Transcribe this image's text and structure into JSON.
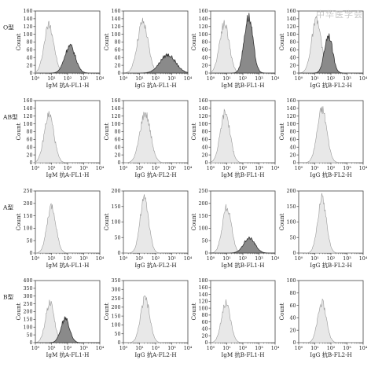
{
  "watermark": "中华医学会",
  "rows": [
    "O型",
    "AB型",
    "A型",
    "B型"
  ],
  "x_tick_labels": [
    "10⁰",
    "10¹",
    "10²",
    "10³",
    "10⁴"
  ],
  "colors": {
    "control_fill": "#e8e8e8",
    "sample_fill": "#8a8a8a",
    "line": "#444444"
  },
  "chart_data": [
    {
      "type": "area",
      "row": 0,
      "col": 0,
      "xlabel": "IgM 抗A-FL1-H",
      "ylabel": "Count",
      "xscale": "log",
      "xlim": [
        1,
        10000
      ],
      "ylim": [
        0,
        160
      ],
      "yticks": [
        0,
        20,
        40,
        60,
        80,
        100,
        120,
        140,
        160
      ],
      "series": [
        {
          "role": "control",
          "mu": 0.85,
          "sigma": 0.3,
          "peak": 126
        },
        {
          "role": "sample",
          "mu": 2.15,
          "sigma": 0.33,
          "peak": 70
        }
      ]
    },
    {
      "type": "area",
      "row": 0,
      "col": 1,
      "xlabel": "IgG 抗A-FL1-H",
      "ylabel": "Count",
      "xscale": "log",
      "xlim": [
        1,
        10000
      ],
      "ylim": [
        0,
        160
      ],
      "yticks": [
        0,
        20,
        40,
        60,
        80,
        100,
        120,
        140,
        160
      ],
      "series": [
        {
          "role": "control",
          "mu": 1.2,
          "sigma": 0.33,
          "peak": 131
        },
        {
          "role": "sample",
          "mu": 2.75,
          "sigma": 0.48,
          "peak": 47
        }
      ]
    },
    {
      "type": "area",
      "row": 0,
      "col": 2,
      "xlabel": "IgM 抗B-FL1-H",
      "ylabel": "Count",
      "xscale": "log",
      "xlim": [
        1,
        10000
      ],
      "ylim": [
        0,
        160
      ],
      "yticks": [
        0,
        20,
        40,
        60,
        80,
        100,
        120,
        140,
        160
      ],
      "series": [
        {
          "role": "control",
          "mu": 0.85,
          "sigma": 0.3,
          "peak": 128
        },
        {
          "role": "sample",
          "mu": 2.35,
          "sigma": 0.27,
          "peak": 145
        }
      ]
    },
    {
      "type": "area",
      "row": 0,
      "col": 3,
      "xlabel": "IgG 抗B-FL2-H",
      "ylabel": "Count",
      "xscale": "log",
      "xlim": [
        1,
        10000
      ],
      "ylim": [
        0,
        160
      ],
      "yticks": [
        0,
        20,
        40,
        60,
        80,
        100,
        120,
        140,
        160
      ],
      "series": [
        {
          "role": "control",
          "mu": 1.1,
          "sigma": 0.3,
          "peak": 135
        },
        {
          "role": "sample",
          "mu": 1.85,
          "sigma": 0.25,
          "peak": 98
        }
      ]
    },
    {
      "type": "area",
      "row": 1,
      "col": 0,
      "xlabel": "IgM 抗A-FL1-H",
      "ylabel": "Count",
      "xscale": "log",
      "xlim": [
        1,
        10000
      ],
      "ylim": [
        0,
        160
      ],
      "yticks": [
        0,
        20,
        40,
        60,
        80,
        100,
        120,
        140,
        160
      ],
      "series": [
        {
          "role": "control",
          "mu": 0.85,
          "sigma": 0.3,
          "peak": 124
        }
      ]
    },
    {
      "type": "area",
      "row": 1,
      "col": 1,
      "xlabel": "IgG 抗A-FL2-H",
      "ylabel": "Count",
      "xscale": "log",
      "xlim": [
        1,
        10000
      ],
      "ylim": [
        0,
        160
      ],
      "yticks": [
        0,
        20,
        40,
        60,
        80,
        100,
        120,
        140,
        160
      ],
      "series": [
        {
          "role": "control",
          "mu": 1.35,
          "sigma": 0.33,
          "peak": 128
        }
      ]
    },
    {
      "type": "area",
      "row": 1,
      "col": 2,
      "xlabel": "IgM 抗B-FL1-H",
      "ylabel": "Count",
      "xscale": "log",
      "xlim": [
        1,
        10000
      ],
      "ylim": [
        0,
        160
      ],
      "yticks": [
        0,
        20,
        40,
        60,
        80,
        100,
        120,
        140,
        160
      ],
      "series": [
        {
          "role": "control",
          "mu": 0.9,
          "sigma": 0.3,
          "peak": 130
        }
      ]
    },
    {
      "type": "area",
      "row": 1,
      "col": 3,
      "xlabel": "IgG 抗B-FL2-H",
      "ylabel": "Count",
      "xscale": "log",
      "xlim": [
        1,
        10000
      ],
      "ylim": [
        0,
        160
      ],
      "yticks": [
        0,
        20,
        40,
        60,
        80,
        100,
        120,
        140,
        160
      ],
      "series": [
        {
          "role": "control",
          "mu": 1.45,
          "sigma": 0.3,
          "peak": 137
        }
      ]
    },
    {
      "type": "area",
      "row": 2,
      "col": 0,
      "xlabel": "IgM 抗A-FL1-H",
      "ylabel": "Count",
      "xscale": "log",
      "xlim": [
        1,
        10000
      ],
      "ylim": [
        0,
        250
      ],
      "yticks": [
        0,
        50,
        100,
        150,
        200,
        250
      ],
      "series": [
        {
          "role": "control",
          "mu": 1.0,
          "sigma": 0.28,
          "peak": 185
        }
      ]
    },
    {
      "type": "area",
      "row": 2,
      "col": 1,
      "xlabel": "IgG 抗A-FL2-H",
      "ylabel": "Count",
      "xscale": "log",
      "xlim": [
        1,
        10000
      ],
      "ylim": [
        0,
        200
      ],
      "yticks": [
        0,
        50,
        100,
        150,
        200
      ],
      "series": [
        {
          "role": "control",
          "mu": 1.3,
          "sigma": 0.27,
          "peak": 175
        }
      ]
    },
    {
      "type": "area",
      "row": 2,
      "col": 2,
      "xlabel": "IgM 抗B-FL1-H",
      "ylabel": "Count",
      "xscale": "log",
      "xlim": [
        1,
        10000
      ],
      "ylim": [
        0,
        250
      ],
      "yticks": [
        0,
        50,
        100,
        150,
        200,
        250
      ],
      "series": [
        {
          "role": "control",
          "mu": 1.0,
          "sigma": 0.28,
          "peak": 185
        },
        {
          "role": "sample",
          "mu": 2.4,
          "sigma": 0.35,
          "peak": 60
        }
      ]
    },
    {
      "type": "area",
      "row": 2,
      "col": 3,
      "xlabel": "IgG 抗B-FL2-H",
      "ylabel": "Count",
      "xscale": "log",
      "xlim": [
        1,
        10000
      ],
      "ylim": [
        0,
        200
      ],
      "yticks": [
        0,
        50,
        100,
        150,
        200
      ],
      "series": [
        {
          "role": "control",
          "mu": 1.45,
          "sigma": 0.27,
          "peak": 178
        }
      ]
    },
    {
      "type": "area",
      "row": 3,
      "col": 0,
      "xlabel": "IgM 抗A-FL1-H",
      "ylabel": "Count",
      "xscale": "log",
      "xlim": [
        1,
        10000
      ],
      "ylim": [
        0,
        400
      ],
      "yticks": [
        0,
        50,
        100,
        150,
        200,
        250,
        300,
        350,
        400
      ],
      "series": [
        {
          "role": "control",
          "mu": 0.9,
          "sigma": 0.27,
          "peak": 255
        },
        {
          "role": "sample",
          "mu": 1.85,
          "sigma": 0.27,
          "peak": 155
        }
      ]
    },
    {
      "type": "area",
      "row": 3,
      "col": 1,
      "xlabel": "IgG 抗A-FL2-H",
      "ylabel": "Count",
      "xscale": "log",
      "xlim": [
        1,
        10000
      ],
      "ylim": [
        0,
        350
      ],
      "yticks": [
        0,
        50,
        100,
        150,
        200,
        250,
        300,
        350
      ],
      "series": [
        {
          "role": "control",
          "mu": 1.35,
          "sigma": 0.28,
          "peak": 250
        }
      ]
    },
    {
      "type": "area",
      "row": 3,
      "col": 2,
      "xlabel": "IgM 抗B-FL1-H",
      "ylabel": "Count",
      "xscale": "log",
      "xlim": [
        1,
        10000
      ],
      "ylim": [
        0,
        180
      ],
      "yticks": [
        0,
        20,
        40,
        60,
        80,
        100,
        120,
        140,
        160,
        180
      ],
      "series": [
        {
          "role": "control",
          "mu": 0.95,
          "sigma": 0.28,
          "peak": 115
        }
      ]
    },
    {
      "type": "area",
      "row": 3,
      "col": 3,
      "xlabel": "IgG 抗B-FL2-H",
      "ylabel": "Count",
      "xscale": "log",
      "xlim": [
        1,
        10000
      ],
      "ylim": [
        0,
        100
      ],
      "yticks": [
        0,
        20,
        40,
        60,
        80,
        100
      ],
      "series": [
        {
          "role": "control",
          "mu": 1.45,
          "sigma": 0.27,
          "peak": 64
        }
      ]
    }
  ]
}
